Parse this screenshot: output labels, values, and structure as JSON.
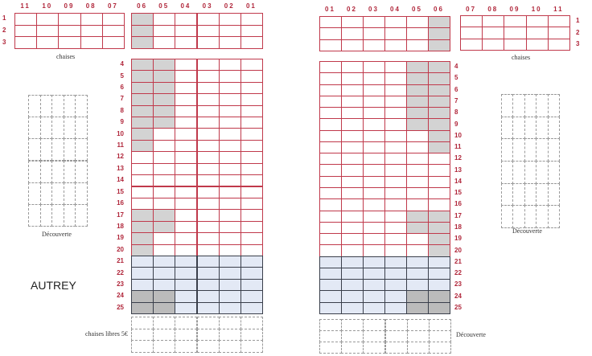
{
  "venue_label": "AUTREY",
  "colors": {
    "row_border": "#c0394b",
    "label": "#b0263a",
    "reserved": "#d3d3d3",
    "reserved_dark": "#bbbbbb",
    "section_b_fill": "#e3e9f5",
    "section_b_border": "#3a3f4b",
    "optional": "#9a9a9a"
  },
  "left": {
    "cols_outer": [
      "11",
      "10",
      "09",
      "08",
      "07"
    ],
    "cols_inner": [
      "06",
      "05",
      "04",
      "03",
      "02",
      "01"
    ],
    "front_rows": [
      "1",
      "2",
      "3"
    ],
    "front_caption": "chaises",
    "main_rows": [
      "4",
      "5",
      "6",
      "7",
      "8",
      "9",
      "10",
      "11",
      "12",
      "13",
      "14",
      "15",
      "16",
      "17",
      "18",
      "19",
      "20",
      "21",
      "22",
      "23",
      "24",
      "25"
    ],
    "decouverte_label": "Découverte",
    "bottom_label": "chaises libres 5€",
    "front_reserved": {
      "1": [
        "06"
      ],
      "2": [
        "06"
      ],
      "3": [
        "06"
      ]
    },
    "main_reserved": {
      "4": [
        "06",
        "05"
      ],
      "5": [
        "06",
        "05"
      ],
      "6": [
        "06",
        "05"
      ],
      "7": [
        "06",
        "05"
      ],
      "8": [
        "06",
        "05"
      ],
      "9": [
        "06",
        "05"
      ],
      "10": [
        "06"
      ],
      "11": [
        "06"
      ],
      "17": [
        "06",
        "05"
      ],
      "18": [
        "06",
        "05"
      ],
      "19": [
        "06"
      ],
      "20": [
        "06"
      ]
    },
    "main_reserved_dark": {
      "24": [
        "06",
        "05"
      ],
      "25": [
        "06",
        "05"
      ]
    }
  },
  "right": {
    "cols_inner": [
      "01",
      "02",
      "03",
      "04",
      "05",
      "06"
    ],
    "cols_outer": [
      "07",
      "08",
      "09",
      "10",
      "11"
    ],
    "front_rows": [
      "1",
      "2",
      "3"
    ],
    "front_caption": "chaises",
    "main_rows": [
      "4",
      "5",
      "6",
      "7",
      "8",
      "9",
      "10",
      "11",
      "12",
      "13",
      "14",
      "15",
      "16",
      "17",
      "18",
      "19",
      "20",
      "21",
      "22",
      "23",
      "24",
      "25"
    ],
    "decouverte_label": "Découverte",
    "bottom_label": "Découverte",
    "front_reserved": {
      "1": [
        "06"
      ],
      "2": [
        "06"
      ],
      "3": [
        "06"
      ]
    },
    "main_reserved": {
      "4": [
        "05",
        "06"
      ],
      "5": [
        "05",
        "06"
      ],
      "6": [
        "05",
        "06"
      ],
      "7": [
        "05",
        "06"
      ],
      "8": [
        "05",
        "06"
      ],
      "9": [
        "05",
        "06"
      ],
      "10": [
        "06"
      ],
      "11": [
        "06"
      ],
      "17": [
        "05",
        "06"
      ],
      "18": [
        "05",
        "06"
      ],
      "19": [
        "06"
      ],
      "20": [
        "06"
      ]
    },
    "main_reserved_dark": {
      "24": [
        "05",
        "06"
      ],
      "25": [
        "05",
        "06"
      ]
    }
  },
  "section_b_rows": [
    "21",
    "22",
    "23",
    "24",
    "25"
  ]
}
